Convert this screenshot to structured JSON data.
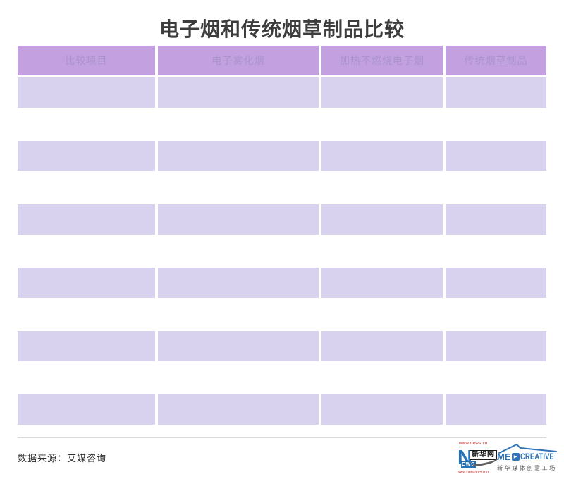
{
  "chart_data": {
    "type": "table",
    "title": "电子烟和传统烟草制品比较",
    "columns": [
      "比较项目",
      "电子雾化烟",
      "加热不燃烧电子烟",
      "传统烟草制品"
    ],
    "rows": [
      [
        "",
        "",
        "",
        ""
      ],
      [
        "",
        "",
        "",
        ""
      ],
      [
        "",
        "",
        "",
        ""
      ],
      [
        "",
        "",
        "",
        ""
      ],
      [
        "",
        "",
        "",
        ""
      ],
      [
        "",
        "",
        "",
        ""
      ]
    ],
    "note": "table body cells are blank bands in the image"
  },
  "footer": {
    "source": "数据来源：艾媒咨询"
  },
  "logos": {
    "xinhua": {
      "url_top": "www.news.cn",
      "letter_n": "N",
      "letters_ews": "EWS",
      "wordmark": "新华网",
      "url_bottom": "www.xinhuanet.com"
    },
    "medcreative": {
      "part1": "ME",
      "play_icon": "▶",
      "part2": "CREATIVE",
      "subtitle": "新华媒体创意工场"
    }
  },
  "colors": {
    "header_bg": "#c3a1e1",
    "header_text": "#ab93cc",
    "row_bg": "#d8d2ee",
    "title_text": "#3d3d3d",
    "divider": "#d8d8d8",
    "xinhua_blue": "#2472b8",
    "xinhua_red": "#cc2a2a",
    "medcreative_blue": "#2e72b8"
  }
}
